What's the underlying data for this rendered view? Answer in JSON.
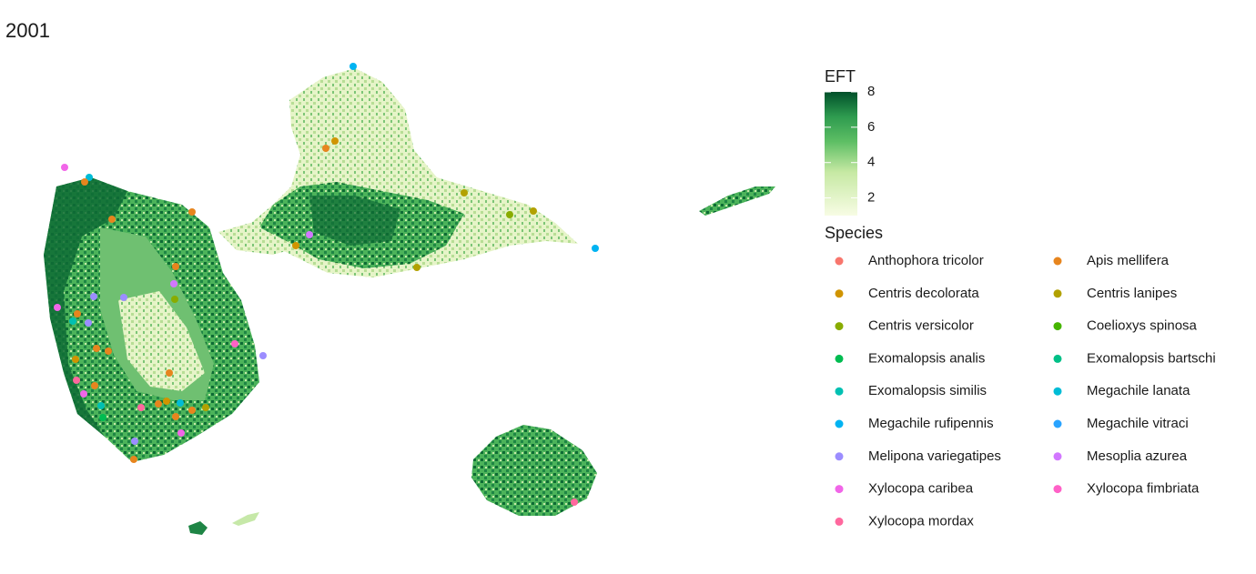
{
  "title": "2001",
  "eft_legend": {
    "title": "EFT",
    "lim": [
      1,
      8
    ],
    "ticks": [
      2,
      4,
      6,
      8
    ]
  },
  "species_legend": {
    "title": "Species",
    "items": [
      {
        "name": "Anthophora tricolor",
        "color": "#F8766D"
      },
      {
        "name": "Apis mellifera",
        "color": "#E7851E"
      },
      {
        "name": "Centris decolorata",
        "color": "#D09400"
      },
      {
        "name": "Centris lanipes",
        "color": "#B2A100"
      },
      {
        "name": "Centris versicolor",
        "color": "#89AC00"
      },
      {
        "name": "Coelioxys spinosa",
        "color": "#45B500"
      },
      {
        "name": "Exomalopsis analis",
        "color": "#00BC51"
      },
      {
        "name": "Exomalopsis bartschi",
        "color": "#00C087"
      },
      {
        "name": "Exomalopsis similis",
        "color": "#00C0B2"
      },
      {
        "name": "Megachile lanata",
        "color": "#00BCD6"
      },
      {
        "name": "Megachile rufipennis",
        "color": "#00B3F2"
      },
      {
        "name": "Megachile vitraci",
        "color": "#29A3FF"
      },
      {
        "name": "Melipona variegatipes",
        "color": "#9C8DFF"
      },
      {
        "name": "Mesoplia azurea",
        "color": "#D277FF"
      },
      {
        "name": "Xylocopa caribea",
        "color": "#F166E8"
      },
      {
        "name": "Xylocopa fimbriata",
        "color": "#FF61C7"
      },
      {
        "name": "Xylocopa mordax",
        "color": "#FF689E"
      }
    ]
  }
}
